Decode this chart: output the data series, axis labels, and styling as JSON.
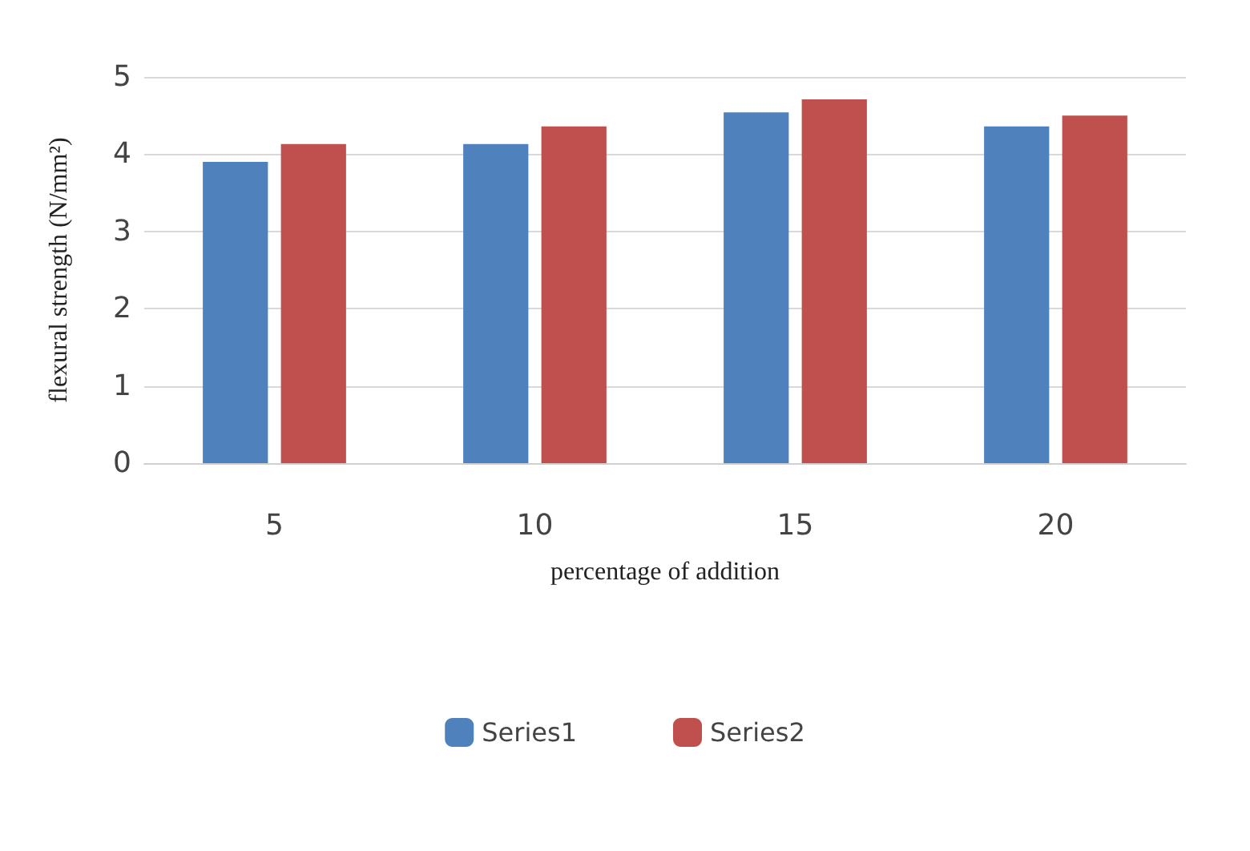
{
  "chart_data": {
    "type": "bar",
    "xlabel": "percentage of addition",
    "ylabel": "flexural strength (N/mm²)",
    "categories": [
      "5",
      "10",
      "15",
      "20"
    ],
    "series": [
      {
        "name": "Series1",
        "color": "#4f81bd",
        "values": [
          3.9,
          4.13,
          4.54,
          4.36
        ]
      },
      {
        "name": "Series2",
        "color": "#c0504d",
        "values": [
          4.13,
          4.36,
          4.71,
          4.5
        ]
      }
    ],
    "ylim": [
      0,
      5
    ],
    "yticks": [
      0,
      1,
      2,
      3,
      4,
      5
    ],
    "grid": "y",
    "legend": "bottom"
  }
}
